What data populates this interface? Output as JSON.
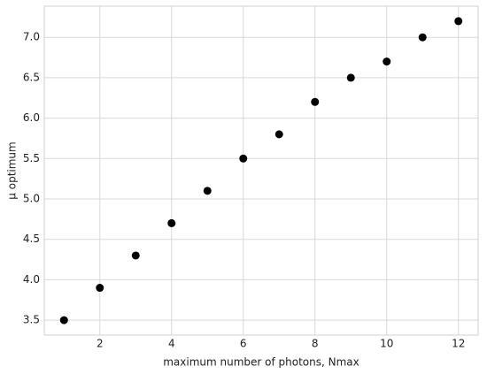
{
  "chart_data": {
    "type": "scatter",
    "x_label": "maximum number of photons, Nmax",
    "y_label": "μ optimum",
    "x": [
      1,
      2,
      3,
      4,
      5,
      6,
      7,
      8,
      9,
      10,
      11,
      12
    ],
    "series": [
      {
        "color": "#000000",
        "values": [
          3.5,
          3.9,
          4.3,
          4.7,
          5.1,
          5.5,
          5.8,
          6.2,
          6.5,
          6.7,
          7.0,
          7.2
        ]
      }
    ],
    "xlim": [
      0.45,
      12.55
    ],
    "ylim": [
      3.315,
      7.385
    ],
    "xticks": [
      2,
      4,
      6,
      8,
      10,
      12
    ],
    "yticks": [
      3.5,
      {
        "value": 4,
        "label": "4.0"
      },
      4.5,
      {
        "value": 5,
        "label": "5.0"
      },
      5.5,
      {
        "value": 6,
        "label": "6.0"
      },
      6.5,
      {
        "value": 7,
        "label": "7.0"
      }
    ],
    "grid": true
  }
}
